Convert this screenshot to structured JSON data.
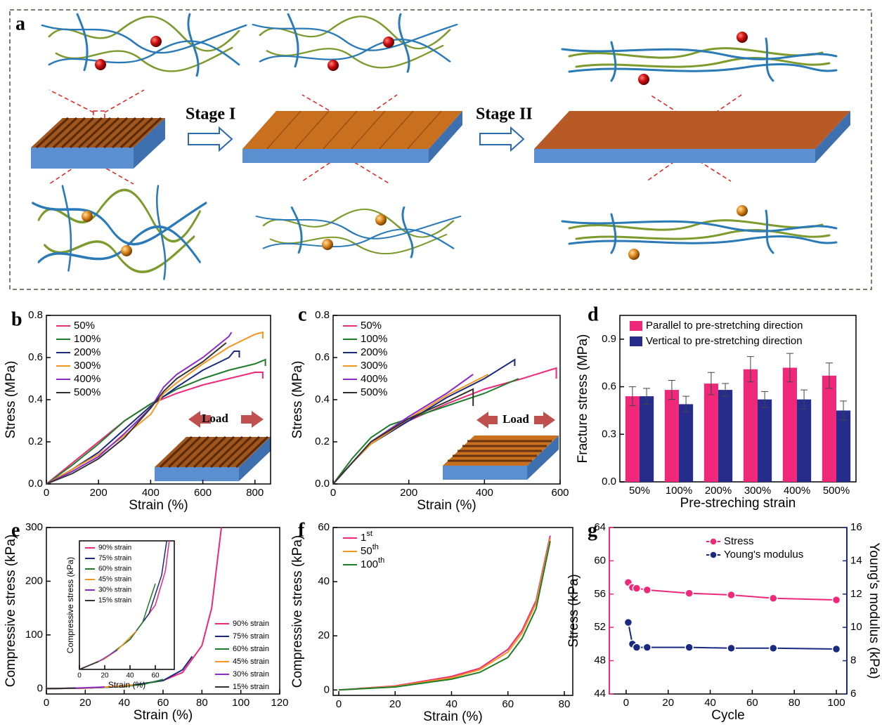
{
  "figure": {
    "label": "a",
    "stages": [
      "Stage I",
      "Stage II"
    ]
  },
  "chart_data": [
    {
      "type": "line",
      "label": "b",
      "x_label": "Strain (%)",
      "y_label": "Stress (MPa)",
      "annotation": "Load",
      "xlim": [
        0,
        860
      ],
      "xticks": [
        0,
        200,
        400,
        600,
        800
      ],
      "ylim": [
        0,
        0.8
      ],
      "yticks": [
        {
          "value": 0,
          "label": "0.0"
        },
        0.2,
        0.4,
        0.6,
        0.8
      ],
      "legend": "upper left",
      "series": [
        {
          "name": "50%",
          "color": "#f0287a",
          "x": [
            0,
            100,
            200,
            300,
            400,
            500,
            600,
            700,
            800,
            830,
            830
          ],
          "values": [
            0,
            0.1,
            0.2,
            0.3,
            0.38,
            0.43,
            0.47,
            0.5,
            0.53,
            0.53,
            0.5
          ]
        },
        {
          "name": "100%",
          "color": "#1e7d2a",
          "x": [
            0,
            100,
            200,
            300,
            400,
            500,
            600,
            700,
            800,
            840,
            840
          ],
          "values": [
            0,
            0.09,
            0.19,
            0.3,
            0.38,
            0.45,
            0.5,
            0.54,
            0.57,
            0.59,
            0.56
          ]
        },
        {
          "name": "200%",
          "color": "#1a2a80",
          "x": [
            0,
            100,
            200,
            300,
            400,
            500,
            600,
            700,
            720,
            740,
            740
          ],
          "values": [
            0,
            0.07,
            0.15,
            0.26,
            0.37,
            0.46,
            0.54,
            0.6,
            0.63,
            0.63,
            0.6
          ]
        },
        {
          "name": "300%",
          "color": "#f5961e",
          "x": [
            0,
            100,
            200,
            300,
            400,
            450,
            500,
            600,
            700,
            800,
            830,
            830
          ],
          "values": [
            0,
            0.07,
            0.14,
            0.23,
            0.33,
            0.43,
            0.48,
            0.57,
            0.65,
            0.71,
            0.72,
            0.69
          ]
        },
        {
          "name": "400%",
          "color": "#8a2bc8",
          "x": [
            0,
            100,
            200,
            300,
            400,
            450,
            500,
            600,
            700,
            710
          ],
          "values": [
            0,
            0.06,
            0.13,
            0.24,
            0.36,
            0.46,
            0.52,
            0.6,
            0.7,
            0.72
          ]
        },
        {
          "name": "500%",
          "color": "#333333",
          "x": [
            0,
            100,
            200,
            300,
            400,
            450,
            500,
            600,
            690
          ],
          "values": [
            0,
            0.05,
            0.12,
            0.22,
            0.36,
            0.44,
            0.5,
            0.58,
            0.67
          ]
        }
      ]
    },
    {
      "type": "line",
      "label": "c",
      "x_label": "Strain (%)",
      "y_label": "Stress (MPa)",
      "annotation": "Load",
      "xlim": [
        0,
        600
      ],
      "xticks": [
        0,
        200,
        400,
        600
      ],
      "ylim": [
        0,
        0.8
      ],
      "yticks": [
        {
          "value": 0,
          "label": "0.0"
        },
        0.2,
        0.4,
        0.6,
        0.8
      ],
      "legend": "upper left",
      "series": [
        {
          "name": "50%",
          "color": "#f0287a",
          "x": [
            0,
            50,
            100,
            200,
            300,
            400,
            500,
            590,
            590
          ],
          "values": [
            0,
            0.1,
            0.2,
            0.3,
            0.38,
            0.45,
            0.5,
            0.55,
            0.5
          ]
        },
        {
          "name": "100%",
          "color": "#1e7d2a",
          "x": [
            0,
            50,
            100,
            150,
            200,
            300,
            400,
            490
          ],
          "values": [
            0,
            0.12,
            0.22,
            0.28,
            0.31,
            0.37,
            0.43,
            0.5
          ]
        },
        {
          "name": "200%",
          "color": "#1a2a80",
          "x": [
            0,
            50,
            100,
            200,
            300,
            400,
            480,
            480
          ],
          "values": [
            0,
            0.1,
            0.19,
            0.3,
            0.41,
            0.5,
            0.59,
            0.56
          ]
        },
        {
          "name": "300%",
          "color": "#f5961e",
          "x": [
            0,
            50,
            100,
            200,
            300,
            410
          ],
          "values": [
            0,
            0.1,
            0.19,
            0.31,
            0.42,
            0.52
          ]
        },
        {
          "name": "400%",
          "color": "#8a2bc8",
          "x": [
            0,
            50,
            100,
            200,
            300,
            370
          ],
          "values": [
            0,
            0.1,
            0.2,
            0.32,
            0.43,
            0.52
          ]
        },
        {
          "name": "500%",
          "color": "#333333",
          "x": [
            0,
            50,
            100,
            200,
            300,
            370,
            370
          ],
          "values": [
            0,
            0.1,
            0.2,
            0.31,
            0.39,
            0.45,
            0.37
          ]
        }
      ]
    },
    {
      "type": "bar",
      "label": "d",
      "x_label": "Pre-streching strain",
      "y_label": "Fracture stress (MPa)",
      "categories": [
        "50%",
        "100%",
        "200%",
        "300%",
        "400%",
        "500%"
      ],
      "ylim": [
        0,
        1.05
      ],
      "yticks": [
        {
          "value": 0,
          "label": "0.0"
        },
        0.3,
        0.6,
        0.9
      ],
      "legend": "upper left",
      "series": [
        {
          "name": "Parallel to pre-stretching direction",
          "color": "#f0287a",
          "values": [
            0.54,
            0.58,
            0.62,
            0.71,
            0.72,
            0.67
          ],
          "errors": [
            0.06,
            0.06,
            0.07,
            0.08,
            0.09,
            0.08
          ]
        },
        {
          "name": "Vertical to pre-stretching direction",
          "color": "#262c8c",
          "values": [
            0.54,
            0.49,
            0.58,
            0.52,
            0.52,
            0.45
          ],
          "errors": [
            0.05,
            0.05,
            0.04,
            0.05,
            0.06,
            0.06
          ]
        }
      ]
    },
    {
      "type": "line",
      "label": "e",
      "x_label": "Strain (%)",
      "y_label": "Compressive stress (kPa)",
      "xlim": [
        0,
        120
      ],
      "xticks": [
        0,
        20,
        40,
        60,
        80,
        100,
        120
      ],
      "ylim": [
        -10,
        300
      ],
      "yticks": [
        0,
        100,
        200,
        300
      ],
      "legend": "lower right",
      "series": [
        {
          "name": "90% strain",
          "color": "#f0287a",
          "x": [
            0,
            20,
            40,
            60,
            70,
            80,
            85,
            90
          ],
          "values": [
            0,
            1,
            4,
            15,
            30,
            80,
            150,
            300
          ]
        },
        {
          "name": "75% strain",
          "color": "#1a2a80",
          "x": [
            0,
            20,
            40,
            60,
            70,
            75
          ],
          "values": [
            0,
            1,
            4,
            15,
            35,
            60
          ]
        },
        {
          "name": "60% strain",
          "color": "#1e7d2a",
          "x": [
            0,
            20,
            40,
            50,
            60
          ],
          "values": [
            0,
            1,
            4,
            8,
            17
          ]
        },
        {
          "name": "45% strain",
          "color": "#f5961e",
          "x": [
            0,
            20,
            30,
            45
          ],
          "values": [
            0,
            1,
            3,
            7
          ]
        },
        {
          "name": "30% strain",
          "color": "#8a2bc8",
          "x": [
            0,
            15,
            30
          ],
          "values": [
            0,
            1,
            3
          ]
        },
        {
          "name": "15% strain",
          "color": "#333333",
          "x": [
            0,
            15
          ],
          "values": [
            0,
            1
          ]
        }
      ]
    },
    {
      "type": "line",
      "inset": true,
      "x_label": "Strain (%)",
      "y_label": "Compressive stress (kPa)",
      "xlim": [
        0,
        75
      ],
      "xticks": [
        0,
        20,
        40,
        60
      ],
      "ylim": [
        0,
        30
      ],
      "legend": "upper left",
      "series": [
        {
          "name": "90% strain",
          "color": "#f0287a",
          "x": [
            0,
            20,
            40,
            60,
            68,
            71
          ],
          "values": [
            0,
            2.5,
            7,
            15,
            23,
            30
          ]
        },
        {
          "name": "75% strain",
          "color": "#1a2a80",
          "x": [
            0,
            20,
            40,
            55,
            65,
            69
          ],
          "values": [
            0,
            2.5,
            7,
            13,
            22,
            30
          ]
        },
        {
          "name": "60% strain",
          "color": "#1e7d2a",
          "x": [
            0,
            20,
            40,
            50,
            60
          ],
          "values": [
            0,
            2.5,
            7,
            11,
            20
          ]
        },
        {
          "name": "45% strain",
          "color": "#f5961e",
          "x": [
            0,
            20,
            30,
            45
          ],
          "values": [
            0,
            2.5,
            4.5,
            9
          ]
        },
        {
          "name": "30% strain",
          "color": "#8a2bc8",
          "x": [
            0,
            15,
            30
          ],
          "values": [
            0,
            1.8,
            4.5
          ]
        },
        {
          "name": "15% strain",
          "color": "#333333",
          "x": [
            0,
            15
          ],
          "values": [
            0,
            1.8
          ]
        }
      ]
    },
    {
      "type": "line",
      "label": "f",
      "x_label": "Strain (%)",
      "y_label": "Compressive stress (kPa)",
      "xlim": [
        -2,
        83
      ],
      "xticks": [
        0,
        20,
        40,
        60,
        80
      ],
      "ylim": [
        -2,
        60
      ],
      "yticks": [
        0,
        20,
        40,
        60
      ],
      "legend": "upper left",
      "series": [
        {
          "name": "1st",
          "color": "#f0287a",
          "x": [
            0,
            20,
            40,
            50,
            60,
            65,
            70,
            75
          ],
          "values": [
            0,
            1.5,
            5,
            8,
            15,
            22,
            33,
            57
          ]
        },
        {
          "name": "50th",
          "color": "#f5961e",
          "x": [
            0,
            20,
            40,
            50,
            60,
            65,
            70,
            75
          ],
          "values": [
            0,
            1.3,
            4.5,
            7.5,
            14,
            21,
            32,
            56
          ]
        },
        {
          "name": "100th",
          "color": "#1e7d2a",
          "x": [
            0,
            20,
            40,
            50,
            60,
            65,
            70,
            75
          ],
          "values": [
            0,
            1.1,
            4,
            6.5,
            12,
            19,
            30,
            55
          ]
        }
      ]
    },
    {
      "type": "line",
      "label": "g",
      "x_label": "Cycle",
      "y_label": "Stress (kPa)",
      "y2_label": "Young's modulus (kPa)",
      "marker": "o",
      "xlim": [
        -8,
        105
      ],
      "xticks": [
        0,
        20,
        40,
        60,
        80,
        100
      ],
      "ylim": [
        44,
        64
      ],
      "yticks": [
        44,
        48,
        52,
        56,
        60,
        64
      ],
      "y2lim": [
        6,
        16
      ],
      "y2ticks": [
        6,
        8,
        10,
        12,
        14,
        16
      ],
      "legend": "upper right",
      "series": [
        {
          "name": "Stress",
          "color": "#f0287a",
          "x": [
            1,
            3,
            5,
            10,
            30,
            50,
            70,
            100
          ],
          "values": [
            57.4,
            56.8,
            56.7,
            56.5,
            56.1,
            55.9,
            55.5,
            55.3
          ]
        },
        {
          "name": "Young's modulus",
          "color": "#1a2a80",
          "axis": "y2",
          "x": [
            1,
            3,
            5,
            10,
            30,
            50,
            70,
            100
          ],
          "values": [
            10.3,
            9.0,
            8.8,
            8.8,
            8.8,
            8.75,
            8.75,
            8.7
          ]
        }
      ]
    }
  ]
}
